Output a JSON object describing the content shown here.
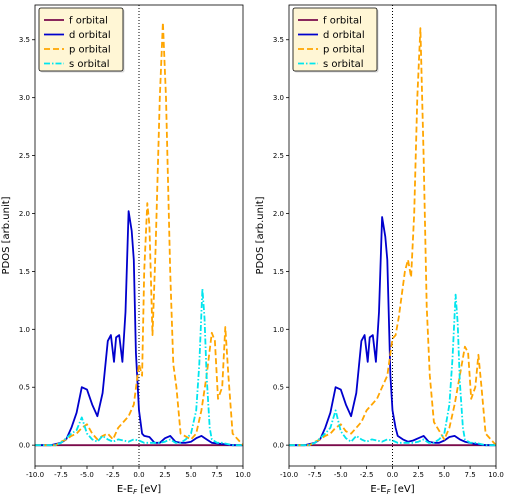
{
  "colors": {
    "f orbital": "#7a0a4a",
    "d orbital": "#0000cd",
    "p orbital": "#ffa500",
    "s orbital": "#00e5ee"
  },
  "chart_data": [
    {
      "type": "line",
      "xlabel": "E-E",
      "xlabel_sub": "F",
      "xlabel_unit": " [eV]",
      "ylabel": "PDOS [arb.unit]",
      "xlim": [
        -10,
        10
      ],
      "ylim": [
        -0.18,
        3.8
      ],
      "xticks": [
        -10.0,
        -7.5,
        -5.0,
        -2.5,
        0.0,
        2.5,
        5.0,
        7.5,
        10.0
      ],
      "yticks": [
        0.0,
        0.5,
        1.0,
        1.5,
        2.0,
        2.5,
        3.0,
        3.5
      ],
      "fermi_line_x": 0,
      "legend": "top-left",
      "series": [
        {
          "name": "f orbital",
          "style": "solid",
          "x": [
            -10,
            0,
            10
          ],
          "y": [
            0,
            0,
            0
          ]
        },
        {
          "name": "d orbital",
          "style": "solid",
          "x": [
            -10,
            -8.5,
            -7.5,
            -7,
            -6.5,
            -6,
            -5.5,
            -5,
            -4.5,
            -4,
            -3.5,
            -3,
            -2.7,
            -2.4,
            -2.2,
            -1.9,
            -1.6,
            -1.3,
            -1.0,
            -0.7,
            -0.5,
            -0.3,
            0,
            0.3,
            0.5,
            1,
            1.5,
            2,
            2.5,
            3,
            3.5,
            4,
            4.5,
            5,
            5.5,
            6,
            6.5,
            7,
            8,
            9,
            10
          ],
          "y": [
            0,
            0,
            0.02,
            0.05,
            0.15,
            0.28,
            0.5,
            0.48,
            0.35,
            0.25,
            0.45,
            0.9,
            0.95,
            0.72,
            0.93,
            0.95,
            0.72,
            1.15,
            2.02,
            1.85,
            1.6,
            0.8,
            0.3,
            0.1,
            0.08,
            0.07,
            0.02,
            0.02,
            0.06,
            0.08,
            0.03,
            0.02,
            0.02,
            0.03,
            0.06,
            0.08,
            0.05,
            0.02,
            0.01,
            0,
            0
          ]
        },
        {
          "name": "p orbital",
          "style": "dashed",
          "x": [
            -10,
            -8,
            -7.5,
            -7,
            -6.5,
            -6,
            -5.5,
            -5,
            -4.5,
            -4,
            -3.5,
            -3,
            -2.5,
            -2,
            -1.5,
            -1,
            -0.5,
            0,
            0.3,
            0.5,
            0.8,
            1,
            1.3,
            1.6,
            2,
            2.3,
            2.6,
            3,
            3.3,
            3.6,
            4,
            5,
            5.5,
            6,
            6.5,
            7,
            7.3,
            7.6,
            8,
            8.3,
            8.6,
            9,
            10
          ],
          "y": [
            0,
            0,
            0.03,
            0.05,
            0.08,
            0.1,
            0.15,
            0.18,
            0.1,
            0.05,
            0.08,
            0.1,
            0.05,
            0.15,
            0.2,
            0.25,
            0.35,
            0.7,
            0.6,
            1.5,
            2.09,
            1.9,
            0.95,
            1.7,
            3.0,
            3.65,
            3.0,
            1.5,
            0.7,
            0.5,
            0.1,
            0.05,
            0.1,
            0.3,
            0.6,
            0.97,
            0.9,
            0.4,
            0.5,
            1.02,
            0.6,
            0.1,
            0
          ]
        },
        {
          "name": "s orbital",
          "style": "dashdot",
          "x": [
            -10,
            -8,
            -7.5,
            -7,
            -6.5,
            -6,
            -5.5,
            -5,
            -4.5,
            -4,
            -3.5,
            -3,
            -2.5,
            -2,
            -1.5,
            -1,
            -0.5,
            0,
            0.5,
            1,
            1.5,
            2,
            2.5,
            3,
            3.5,
            4,
            4.5,
            5,
            5.5,
            5.8,
            6.1,
            6.3,
            6.5,
            6.8,
            7,
            7.5,
            8,
            8.5,
            9,
            10
          ],
          "y": [
            0,
            0,
            0.02,
            0.06,
            0.1,
            0.13,
            0.24,
            0.1,
            0.05,
            0.03,
            0.08,
            0.05,
            0.03,
            0.05,
            0.04,
            0.03,
            0.05,
            0.04,
            0.02,
            0.02,
            0.02,
            0.02,
            0.03,
            0.05,
            0.02,
            0.02,
            0.05,
            0.1,
            0.3,
            0.7,
            1.35,
            1.1,
            0.6,
            0.15,
            0.05,
            0.02,
            0.02,
            0.01,
            0,
            0
          ]
        }
      ]
    },
    {
      "type": "line",
      "xlabel": "E-E",
      "xlabel_sub": "F",
      "xlabel_unit": " [eV]",
      "ylabel": "PDOS [arb.unit]",
      "xlim": [
        -10,
        10
      ],
      "ylim": [
        -0.18,
        3.8
      ],
      "xticks": [
        -10.0,
        -7.5,
        -5.0,
        -2.5,
        0.0,
        2.5,
        5.0,
        7.5,
        10.0
      ],
      "yticks": [
        0.0,
        0.5,
        1.0,
        1.5,
        2.0,
        2.5,
        3.0,
        3.5
      ],
      "fermi_line_x": 0,
      "legend": "top-left",
      "series": [
        {
          "name": "f orbital",
          "style": "solid",
          "x": [
            -10,
            0,
            10
          ],
          "y": [
            0,
            0,
            0
          ]
        },
        {
          "name": "d orbital",
          "style": "solid",
          "x": [
            -10,
            -8.5,
            -7.5,
            -7,
            -6.5,
            -6,
            -5.5,
            -5,
            -4.5,
            -4,
            -3.5,
            -3,
            -2.7,
            -2.4,
            -2.2,
            -1.9,
            -1.6,
            -1.3,
            -1.0,
            -0.7,
            -0.5,
            -0.2,
            0,
            0.3,
            0.5,
            1,
            1.5,
            2,
            2.5,
            3,
            3.5,
            4,
            4.5,
            5,
            5.5,
            6,
            6.5,
            7,
            8,
            9,
            10
          ],
          "y": [
            0,
            0,
            0.02,
            0.05,
            0.15,
            0.28,
            0.5,
            0.48,
            0.35,
            0.25,
            0.45,
            0.9,
            0.95,
            0.72,
            0.93,
            0.95,
            0.72,
            1.15,
            1.97,
            1.8,
            1.6,
            0.6,
            0.3,
            0.15,
            0.08,
            0.05,
            0.03,
            0.04,
            0.06,
            0.08,
            0.03,
            0.02,
            0.02,
            0.04,
            0.07,
            0.08,
            0.05,
            0.03,
            0.01,
            0,
            0
          ]
        },
        {
          "name": "p orbital",
          "style": "dashed",
          "x": [
            -10,
            -8,
            -7.5,
            -7,
            -6.5,
            -6,
            -5.5,
            -5,
            -4.5,
            -4,
            -3.5,
            -3,
            -2.5,
            -2,
            -1.5,
            -1,
            -0.5,
            0,
            0.3,
            0.6,
            0.9,
            1.2,
            1.5,
            1.8,
            2.1,
            2.4,
            2.7,
            3,
            3.3,
            3.6,
            4,
            5,
            5.5,
            6,
            6.5,
            7,
            7.3,
            7.6,
            8,
            8.3,
            8.6,
            9,
            10
          ],
          "y": [
            0,
            0,
            0.03,
            0.05,
            0.08,
            0.1,
            0.15,
            0.18,
            0.12,
            0.1,
            0.15,
            0.2,
            0.3,
            0.35,
            0.4,
            0.5,
            0.6,
            0.92,
            0.95,
            1.1,
            1.3,
            1.5,
            1.6,
            1.45,
            2.0,
            3.0,
            3.6,
            2.5,
            1.2,
            0.6,
            0.2,
            0.05,
            0.15,
            0.35,
            0.6,
            0.85,
            0.8,
            0.4,
            0.5,
            0.78,
            0.5,
            0.1,
            0
          ]
        },
        {
          "name": "s orbital",
          "style": "dashdot",
          "x": [
            -10,
            -8,
            -7.5,
            -7,
            -6.5,
            -6,
            -5.5,
            -5,
            -4.5,
            -4,
            -3.5,
            -3,
            -2.5,
            -2,
            -1.5,
            -1,
            -0.5,
            0,
            0.5,
            1,
            1.5,
            2,
            2.5,
            3,
            3.5,
            4,
            4.5,
            5,
            5.5,
            5.8,
            6.1,
            6.3,
            6.5,
            6.8,
            7,
            7.5,
            8,
            8.5,
            9,
            10
          ],
          "y": [
            0,
            0,
            0.02,
            0.06,
            0.1,
            0.15,
            0.3,
            0.12,
            0.06,
            0.03,
            0.08,
            0.05,
            0.03,
            0.05,
            0.04,
            0.03,
            0.05,
            0.04,
            0.02,
            0.02,
            0.02,
            0.02,
            0.03,
            0.05,
            0.02,
            0.02,
            0.05,
            0.1,
            0.35,
            0.75,
            1.3,
            1.05,
            0.55,
            0.15,
            0.05,
            0.02,
            0.02,
            0.01,
            0,
            0
          ]
        }
      ]
    }
  ]
}
